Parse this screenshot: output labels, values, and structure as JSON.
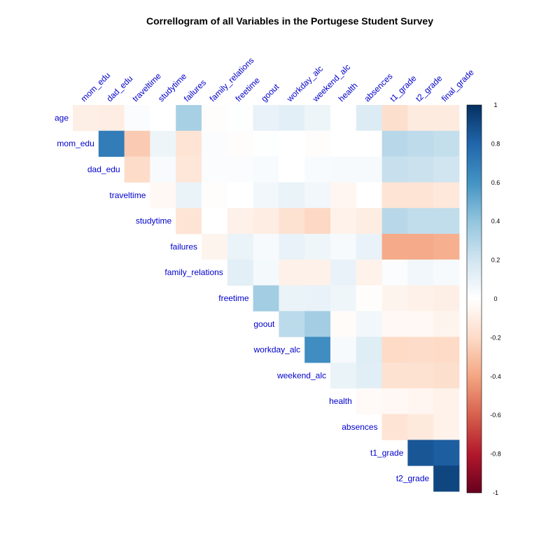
{
  "chart_data": {
    "type": "heatmap",
    "title": "Correllogram of all Variables in the Portugese Student Survey",
    "row_labels": [
      "age",
      "mom_edu",
      "dad_edu",
      "traveltime",
      "studytime",
      "failures",
      "family_relations",
      "freetime",
      "goout",
      "workday_alc",
      "weekend_alc",
      "health",
      "absences",
      "t1_grade",
      "t2_grade"
    ],
    "col_labels": [
      "mom_edu",
      "dad_edu",
      "traveltime",
      "studytime",
      "failures",
      "family_relations",
      "freetime",
      "goout",
      "workday_alc",
      "weekend_alc",
      "health",
      "absences",
      "t1_grade",
      "t2_grade",
      "final_grade"
    ],
    "matrix": [
      [
        -0.09,
        -0.1,
        0.02,
        0.0,
        0.33,
        -0.01,
        0.01,
        0.1,
        0.12,
        0.08,
        0.0,
        0.15,
        -0.18,
        -0.11,
        -0.11
      ],
      [
        null,
        0.7,
        -0.26,
        0.08,
        -0.15,
        0.02,
        -0.01,
        0.01,
        0.0,
        -0.01,
        0.0,
        0.0,
        0.28,
        0.26,
        0.24
      ],
      [
        null,
        null,
        -0.19,
        0.03,
        -0.14,
        0.02,
        0.02,
        0.03,
        0.0,
        0.03,
        0.04,
        0.04,
        0.23,
        0.22,
        0.2
      ],
      [
        null,
        null,
        null,
        -0.04,
        0.09,
        -0.01,
        0.0,
        0.06,
        0.09,
        0.06,
        -0.05,
        0.0,
        -0.15,
        -0.15,
        -0.13
      ],
      [
        null,
        null,
        null,
        null,
        -0.15,
        0.0,
        -0.08,
        -0.1,
        -0.16,
        -0.21,
        -0.07,
        -0.1,
        0.28,
        0.25,
        0.25
      ],
      [
        null,
        null,
        null,
        null,
        null,
        -0.06,
        0.09,
        0.04,
        0.1,
        0.07,
        0.04,
        0.1,
        -0.38,
        -0.38,
        -0.36
      ],
      [
        null,
        null,
        null,
        null,
        null,
        null,
        0.12,
        0.05,
        -0.08,
        -0.08,
        0.1,
        -0.07,
        0.02,
        0.06,
        0.04
      ],
      [
        null,
        null,
        null,
        null,
        null,
        null,
        null,
        0.35,
        0.09,
        0.1,
        0.07,
        -0.01,
        -0.06,
        -0.08,
        -0.09
      ],
      [
        null,
        null,
        null,
        null,
        null,
        null,
        null,
        null,
        0.27,
        0.35,
        -0.02,
        0.06,
        -0.04,
        -0.04,
        -0.06
      ],
      [
        null,
        null,
        null,
        null,
        null,
        null,
        null,
        null,
        null,
        0.62,
        0.04,
        0.14,
        -0.2,
        -0.19,
        -0.2
      ],
      [
        null,
        null,
        null,
        null,
        null,
        null,
        null,
        null,
        null,
        null,
        0.09,
        0.13,
        -0.16,
        -0.16,
        -0.18
      ],
      [
        null,
        null,
        null,
        null,
        null,
        null,
        null,
        null,
        null,
        null,
        null,
        -0.03,
        -0.04,
        -0.05,
        -0.07
      ],
      [
        null,
        null,
        null,
        null,
        null,
        null,
        null,
        null,
        null,
        null,
        null,
        null,
        -0.15,
        -0.12,
        -0.07
      ],
      [
        null,
        null,
        null,
        null,
        null,
        null,
        null,
        null,
        null,
        null,
        null,
        null,
        null,
        0.86,
        0.83
      ],
      [
        null,
        null,
        null,
        null,
        null,
        null,
        null,
        null,
        null,
        null,
        null,
        null,
        null,
        null,
        0.92
      ]
    ],
    "colorbar": {
      "range": [
        -1,
        1
      ],
      "ticks": [
        "1",
        "0.8",
        "0.6",
        "0.4",
        "0.2",
        "0",
        "-0.2",
        "-0.4",
        "-0.6",
        "-0.8",
        "-1"
      ],
      "palette": [
        "#67001F",
        "#B2182B",
        "#D6604D",
        "#F4A582",
        "#FDDBC7",
        "#FFFFFF",
        "#D1E5F0",
        "#92C5DE",
        "#4393C3",
        "#2166AC",
        "#053061"
      ]
    },
    "label_color": "#0000CD",
    "grid": false,
    "legend_position": "right"
  }
}
